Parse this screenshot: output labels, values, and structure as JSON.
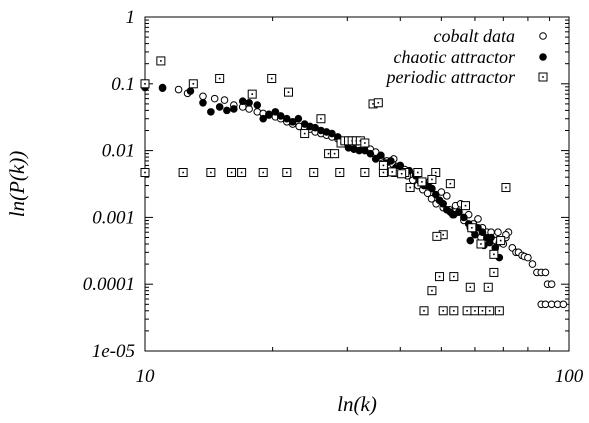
{
  "chart_data": {
    "type": "scatter",
    "title": "",
    "xlabel": "ln(k)",
    "ylabel": "ln(P(k))",
    "xscale": "log",
    "yscale": "log",
    "xlim": [
      10,
      100
    ],
    "ylim": [
      1e-05,
      1
    ],
    "x_ticks": [
      {
        "value": 10,
        "label": "10"
      },
      {
        "value": 100,
        "label": "100"
      }
    ],
    "y_ticks": [
      {
        "value": 1,
        "label": "1"
      },
      {
        "value": 0.1,
        "label": "0.1"
      },
      {
        "value": 0.01,
        "label": "0.01"
      },
      {
        "value": 0.001,
        "label": "0.001"
      },
      {
        "value": 0.0001,
        "label": "0.0001"
      },
      {
        "value": 1e-05,
        "label": "1e-05"
      }
    ],
    "grid": false,
    "legend_position": "top-right",
    "series": [
      {
        "name": "cobalt data",
        "marker": "open-circle",
        "color": "#000000",
        "points": [
          [
            10.0,
            0.095
          ],
          [
            11.0,
            0.088
          ],
          [
            12.0,
            0.082
          ],
          [
            12.6,
            0.072
          ],
          [
            13.7,
            0.065
          ],
          [
            14.6,
            0.06
          ],
          [
            15.4,
            0.057
          ],
          [
            16.2,
            0.048
          ],
          [
            17.0,
            0.045
          ],
          [
            17.6,
            0.042
          ],
          [
            18.4,
            0.038
          ],
          [
            19.0,
            0.036
          ],
          [
            19.6,
            0.034
          ],
          [
            20.3,
            0.032
          ],
          [
            20.9,
            0.03
          ],
          [
            21.6,
            0.027
          ],
          [
            22.3,
            0.025
          ],
          [
            23.1,
            0.023
          ],
          [
            23.8,
            0.022
          ],
          [
            24.5,
            0.021
          ],
          [
            25.2,
            0.019
          ],
          [
            26.0,
            0.018
          ],
          [
            26.8,
            0.017
          ],
          [
            27.6,
            0.016
          ],
          [
            28.5,
            0.015
          ],
          [
            29.3,
            0.014
          ],
          [
            30.2,
            0.013
          ],
          [
            31.1,
            0.012
          ],
          [
            32.0,
            0.012
          ],
          [
            33.0,
            0.011
          ],
          [
            34.0,
            0.0105
          ],
          [
            35.0,
            0.0095
          ],
          [
            36.0,
            0.008
          ],
          [
            37.2,
            0.007
          ],
          [
            38.4,
            0.0063
          ],
          [
            39.3,
            0.0058
          ],
          [
            40.5,
            0.0048
          ],
          [
            41.6,
            0.0042
          ],
          [
            42.8,
            0.0036
          ],
          [
            44.0,
            0.003
          ],
          [
            45.2,
            0.0026
          ],
          [
            46.4,
            0.0023
          ],
          [
            47.4,
            0.0019
          ],
          [
            48.6,
            0.0016
          ],
          [
            49.5,
            0.0018
          ],
          [
            50.5,
            0.0014
          ],
          [
            51.5,
            0.0021
          ],
          [
            52.3,
            0.0013
          ],
          [
            53.2,
            0.0011
          ],
          [
            54.0,
            0.0015
          ],
          [
            55.0,
            0.0012
          ],
          [
            56.5,
            0.0009
          ],
          [
            58.0,
            0.0011
          ],
          [
            59.5,
            0.0008
          ],
          [
            61.0,
            0.00095
          ],
          [
            62.5,
            0.0007
          ],
          [
            64.0,
            0.0006
          ],
          [
            65.5,
            0.0006
          ],
          [
            67.0,
            0.00045
          ],
          [
            68.5,
            0.00042
          ],
          [
            70.0,
            0.0004
          ],
          [
            71.0,
            0.0005
          ],
          [
            72.0,
            0.0006
          ],
          [
            73.5,
            0.00035
          ],
          [
            75.0,
            0.0003
          ],
          [
            76.0,
            0.0003
          ],
          [
            77.5,
            0.00027
          ],
          [
            78.5,
            0.00026
          ],
          [
            80.0,
            0.00025
          ],
          [
            82.0,
            0.0002
          ],
          [
            84.0,
            0.00015
          ],
          [
            86.0,
            0.00015
          ],
          [
            88.0,
            0.00015
          ],
          [
            89.0,
            0.0001
          ],
          [
            91.0,
            0.0001
          ],
          [
            86.0,
            5e-05
          ],
          [
            88.0,
            5e-05
          ],
          [
            91.0,
            5e-05
          ],
          [
            94.0,
            5e-05
          ],
          [
            97.0,
            5e-05
          ],
          [
            50.0,
            0.0024
          ],
          [
            55.5,
            0.0016
          ],
          [
            58.5,
            0.0007
          ],
          [
            62.0,
            0.0005
          ],
          [
            68.0,
            0.0006
          ],
          [
            71.0,
            0.00055
          ],
          [
            47.0,
            0.0035
          ],
          [
            43.5,
            0.0045
          ],
          [
            41.0,
            0.0052
          ],
          [
            38.6,
            0.0075
          ]
        ]
      },
      {
        "name": "chaotic attractor",
        "marker": "filled-circle",
        "color": "#000000",
        "points": [
          [
            10.0,
            0.088
          ],
          [
            11.0,
            0.086
          ],
          [
            12.8,
            0.078
          ],
          [
            13.7,
            0.052
          ],
          [
            14.3,
            0.038
          ],
          [
            15.0,
            0.045
          ],
          [
            15.6,
            0.04
          ],
          [
            16.2,
            0.042
          ],
          [
            17.0,
            0.055
          ],
          [
            17.6,
            0.052
          ],
          [
            18.4,
            0.048
          ],
          [
            19.0,
            0.03
          ],
          [
            19.6,
            0.035
          ],
          [
            20.3,
            0.038
          ],
          [
            20.9,
            0.033
          ],
          [
            21.6,
            0.03
          ],
          [
            22.3,
            0.027
          ],
          [
            23.0,
            0.03
          ],
          [
            23.8,
            0.025
          ],
          [
            24.5,
            0.023
          ],
          [
            25.2,
            0.022
          ],
          [
            26.0,
            0.02
          ],
          [
            26.8,
            0.019
          ],
          [
            27.6,
            0.018
          ],
          [
            28.5,
            0.016
          ],
          [
            29.3,
            0.013
          ],
          [
            30.2,
            0.011
          ],
          [
            31.1,
            0.0105
          ],
          [
            32.0,
            0.01
          ],
          [
            33.0,
            0.01
          ],
          [
            34.0,
            0.009
          ],
          [
            35.0,
            0.0075
          ],
          [
            36.0,
            0.0085
          ],
          [
            37.0,
            0.0065
          ],
          [
            38.0,
            0.007
          ],
          [
            39.0,
            0.0055
          ],
          [
            40.0,
            0.006
          ],
          [
            41.0,
            0.0045
          ],
          [
            42.0,
            0.005
          ],
          [
            43.5,
            0.0042
          ],
          [
            44.5,
            0.0035
          ],
          [
            45.5,
            0.003
          ],
          [
            46.5,
            0.003
          ],
          [
            47.5,
            0.0027
          ],
          [
            48.5,
            0.0022
          ],
          [
            49.5,
            0.0018
          ],
          [
            50.5,
            0.0016
          ],
          [
            51.5,
            0.0013
          ],
          [
            52.5,
            0.0012
          ],
          [
            53.5,
            0.0011
          ],
          [
            55.0,
            0.0012
          ],
          [
            56.5,
            0.001
          ],
          [
            58.0,
            0.0008
          ],
          [
            59.5,
            0.00065
          ],
          [
            61.0,
            0.0007
          ],
          [
            62.5,
            0.0006
          ],
          [
            64.0,
            0.0005
          ],
          [
            65.5,
            0.0005
          ],
          [
            67.0,
            0.00035
          ],
          [
            68.5,
            0.00025
          ],
          [
            58.5,
            0.00045
          ],
          [
            60.0,
            0.00055
          ],
          [
            63.0,
            0.00038
          ],
          [
            65.0,
            0.00042
          ],
          [
            60.5,
            4e-05
          ]
        ]
      },
      {
        "name": "periodic attractor",
        "marker": "boxed-dot",
        "color": "#000000",
        "points": [
          [
            10.0,
            0.0047
          ],
          [
            12.3,
            0.0047
          ],
          [
            14.3,
            0.0047
          ],
          [
            16.0,
            0.0047
          ],
          [
            16.9,
            0.0047
          ],
          [
            19.0,
            0.0047
          ],
          [
            21.6,
            0.0047
          ],
          [
            25.0,
            0.0047
          ],
          [
            28.8,
            0.0047
          ],
          [
            33.0,
            0.0047
          ],
          [
            36.5,
            0.0047
          ],
          [
            39.0,
            0.0047
          ],
          [
            41.0,
            0.0047
          ],
          [
            44.0,
            0.0047
          ],
          [
            48.5,
            0.0047
          ],
          [
            10.0,
            0.1
          ],
          [
            10.9,
            0.22
          ],
          [
            13.0,
            0.1
          ],
          [
            15.0,
            0.12
          ],
          [
            17.9,
            0.07
          ],
          [
            19.9,
            0.12
          ],
          [
            21.8,
            0.075
          ],
          [
            23.8,
            0.018
          ],
          [
            26.0,
            0.03
          ],
          [
            27.1,
            0.009
          ],
          [
            28.0,
            0.009
          ],
          [
            29.0,
            0.013
          ],
          [
            29.6,
            0.014
          ],
          [
            30.2,
            0.014
          ],
          [
            30.8,
            0.014
          ],
          [
            31.5,
            0.014
          ],
          [
            32.2,
            0.014
          ],
          [
            33.0,
            0.013
          ],
          [
            34.5,
            0.05
          ],
          [
            35.5,
            0.052
          ],
          [
            36.5,
            0.006
          ],
          [
            38.3,
            0.0048
          ],
          [
            40.3,
            0.0045
          ],
          [
            42.2,
            0.0028
          ],
          [
            45.0,
            0.0034
          ],
          [
            47.5,
            0.0037
          ],
          [
            52.5,
            0.0032
          ],
          [
            57.0,
            0.0015
          ],
          [
            59.0,
            0.0007
          ],
          [
            62.0,
            0.0004
          ],
          [
            66.5,
            0.00028
          ],
          [
            71.0,
            0.0028
          ],
          [
            49.5,
            0.00013
          ],
          [
            47.5,
            8e-05
          ],
          [
            50.5,
            0.00055
          ],
          [
            48.8,
            0.00052
          ],
          [
            53.5,
            0.00013
          ],
          [
            58.5,
            9e-05
          ],
          [
            66.5,
            0.00015
          ],
          [
            64.5,
            9e-05
          ],
          [
            69.0,
            0.00045
          ],
          [
            45.5,
            4e-05
          ],
          [
            50.5,
            4e-05
          ],
          [
            53.5,
            4e-05
          ],
          [
            57.5,
            4e-05
          ],
          [
            60.0,
            4e-05
          ],
          [
            62.5,
            4e-05
          ],
          [
            65.0,
            4e-05
          ],
          [
            68.5,
            4e-05
          ]
        ]
      }
    ]
  }
}
